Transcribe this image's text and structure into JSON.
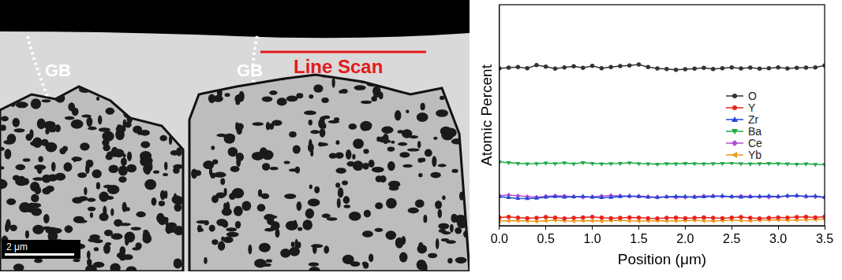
{
  "chart_data": {
    "type": "line",
    "x": [
      0.0,
      0.1,
      0.2,
      0.3,
      0.4,
      0.5,
      0.6,
      0.7,
      0.8,
      0.9,
      1.0,
      1.1,
      1.2,
      1.3,
      1.4,
      1.5,
      1.6,
      1.7,
      1.8,
      1.9,
      2.0,
      2.1,
      2.2,
      2.3,
      2.4,
      2.5,
      2.6,
      2.7,
      2.8,
      2.9,
      3.0,
      3.1,
      3.2,
      3.3,
      3.4,
      3.5
    ],
    "series": [
      {
        "name": "O",
        "color": "#333333",
        "marker": "circle",
        "values": [
          60.5,
          60.8,
          61.0,
          60.6,
          61.8,
          61.2,
          60.4,
          60.9,
          61.3,
          60.7,
          61.5,
          60.6,
          61.0,
          61.4,
          61.6,
          62.0,
          61.0,
          60.5,
          60.3,
          60.0,
          60.2,
          60.4,
          60.7,
          60.3,
          60.6,
          60.9,
          60.5,
          60.8,
          60.4,
          60.6,
          60.9,
          60.5,
          60.7,
          60.8,
          60.9,
          61.6
        ]
      },
      {
        "name": "Y",
        "color": "#e8241c",
        "marker": "circle",
        "values": [
          3.2,
          3.4,
          3.1,
          2.9,
          3.0,
          3.3,
          3.1,
          2.8,
          3.0,
          3.2,
          3.4,
          3.1,
          2.9,
          3.0,
          3.2,
          3.1,
          2.9,
          2.8,
          3.0,
          3.1,
          2.9,
          3.0,
          3.2,
          3.0,
          2.9,
          3.1,
          3.3,
          3.0,
          2.8,
          3.0,
          3.2,
          3.1,
          3.3,
          3.4,
          3.2,
          3.5
        ]
      },
      {
        "name": "Zr",
        "color": "#2446d8",
        "marker": "triangle",
        "values": [
          11.2,
          10.8,
          10.5,
          10.4,
          10.6,
          11.0,
          11.2,
          11.0,
          11.1,
          11.3,
          11.0,
          10.8,
          10.9,
          11.2,
          11.4,
          11.2,
          11.0,
          10.9,
          11.1,
          11.3,
          11.2,
          11.0,
          11.1,
          11.3,
          11.4,
          11.2,
          11.0,
          11.1,
          11.3,
          11.4,
          11.2,
          11.5,
          11.6,
          11.3,
          11.4,
          11.0
        ]
      },
      {
        "name": "Ba",
        "color": "#1faa46",
        "marker": "triangle_down",
        "values": [
          24.5,
          24.3,
          24.0,
          23.8,
          23.9,
          24.1,
          23.9,
          24.2,
          23.8,
          24.3,
          24.0,
          23.8,
          23.9,
          24.0,
          24.2,
          23.9,
          23.8,
          23.7,
          23.9,
          23.8,
          24.0,
          23.9,
          23.8,
          23.9,
          24.0,
          24.1,
          23.9,
          23.8,
          23.9,
          24.0,
          23.9,
          23.8,
          23.7,
          23.8,
          23.6,
          23.5
        ]
      },
      {
        "name": "Ce",
        "color": "#b04fd0",
        "marker": "diamond",
        "values": [
          11.6,
          11.8,
          11.5,
          11.2,
          11.0,
          11.3,
          11.5,
          11.4,
          11.2,
          11.0,
          11.1,
          11.4,
          11.6,
          11.5,
          11.3,
          11.4,
          11.2,
          11.0,
          11.1,
          10.9,
          11.0,
          11.2,
          11.4,
          11.5,
          11.3,
          11.2,
          11.4,
          11.3,
          11.1,
          11.0,
          11.2,
          11.4,
          11.5,
          11.3,
          11.1,
          10.9
        ]
      },
      {
        "name": "Yb",
        "color": "#e89a1c",
        "marker": "triangle_left",
        "values": [
          1.8,
          1.9,
          2.0,
          1.8,
          1.7,
          1.9,
          2.1,
          1.9,
          1.8,
          2.0,
          1.9,
          1.8,
          2.0,
          2.1,
          1.9,
          1.8,
          1.9,
          2.0,
          1.8,
          1.9,
          2.0,
          2.1,
          1.9,
          1.8,
          2.0,
          2.2,
          2.0,
          1.9,
          2.1,
          2.2,
          2.3,
          2.1,
          2.2,
          2.3,
          2.4,
          2.5
        ]
      }
    ],
    "x_label": "Position (μm)",
    "y_label": "Atomic Percent",
    "xlim": [
      0,
      3.5
    ],
    "xticks": [
      {
        "value": 0,
        "label": "0.0"
      },
      0.5,
      {
        "value": 1,
        "label": "1.0"
      },
      1.5,
      {
        "value": 2,
        "label": "2.0"
      },
      2.5,
      {
        "value": 3,
        "label": "3.0"
      },
      3.5
    ],
    "ylim": [
      0,
      85
    ],
    "tick_labels": "x",
    "grid": false,
    "legend": "right"
  },
  "micrograph": {
    "grain_boundary_labels": [
      "GB",
      "GB"
    ],
    "line_scan_label": "Line Scan",
    "scale_bar_label": "2 μm"
  }
}
